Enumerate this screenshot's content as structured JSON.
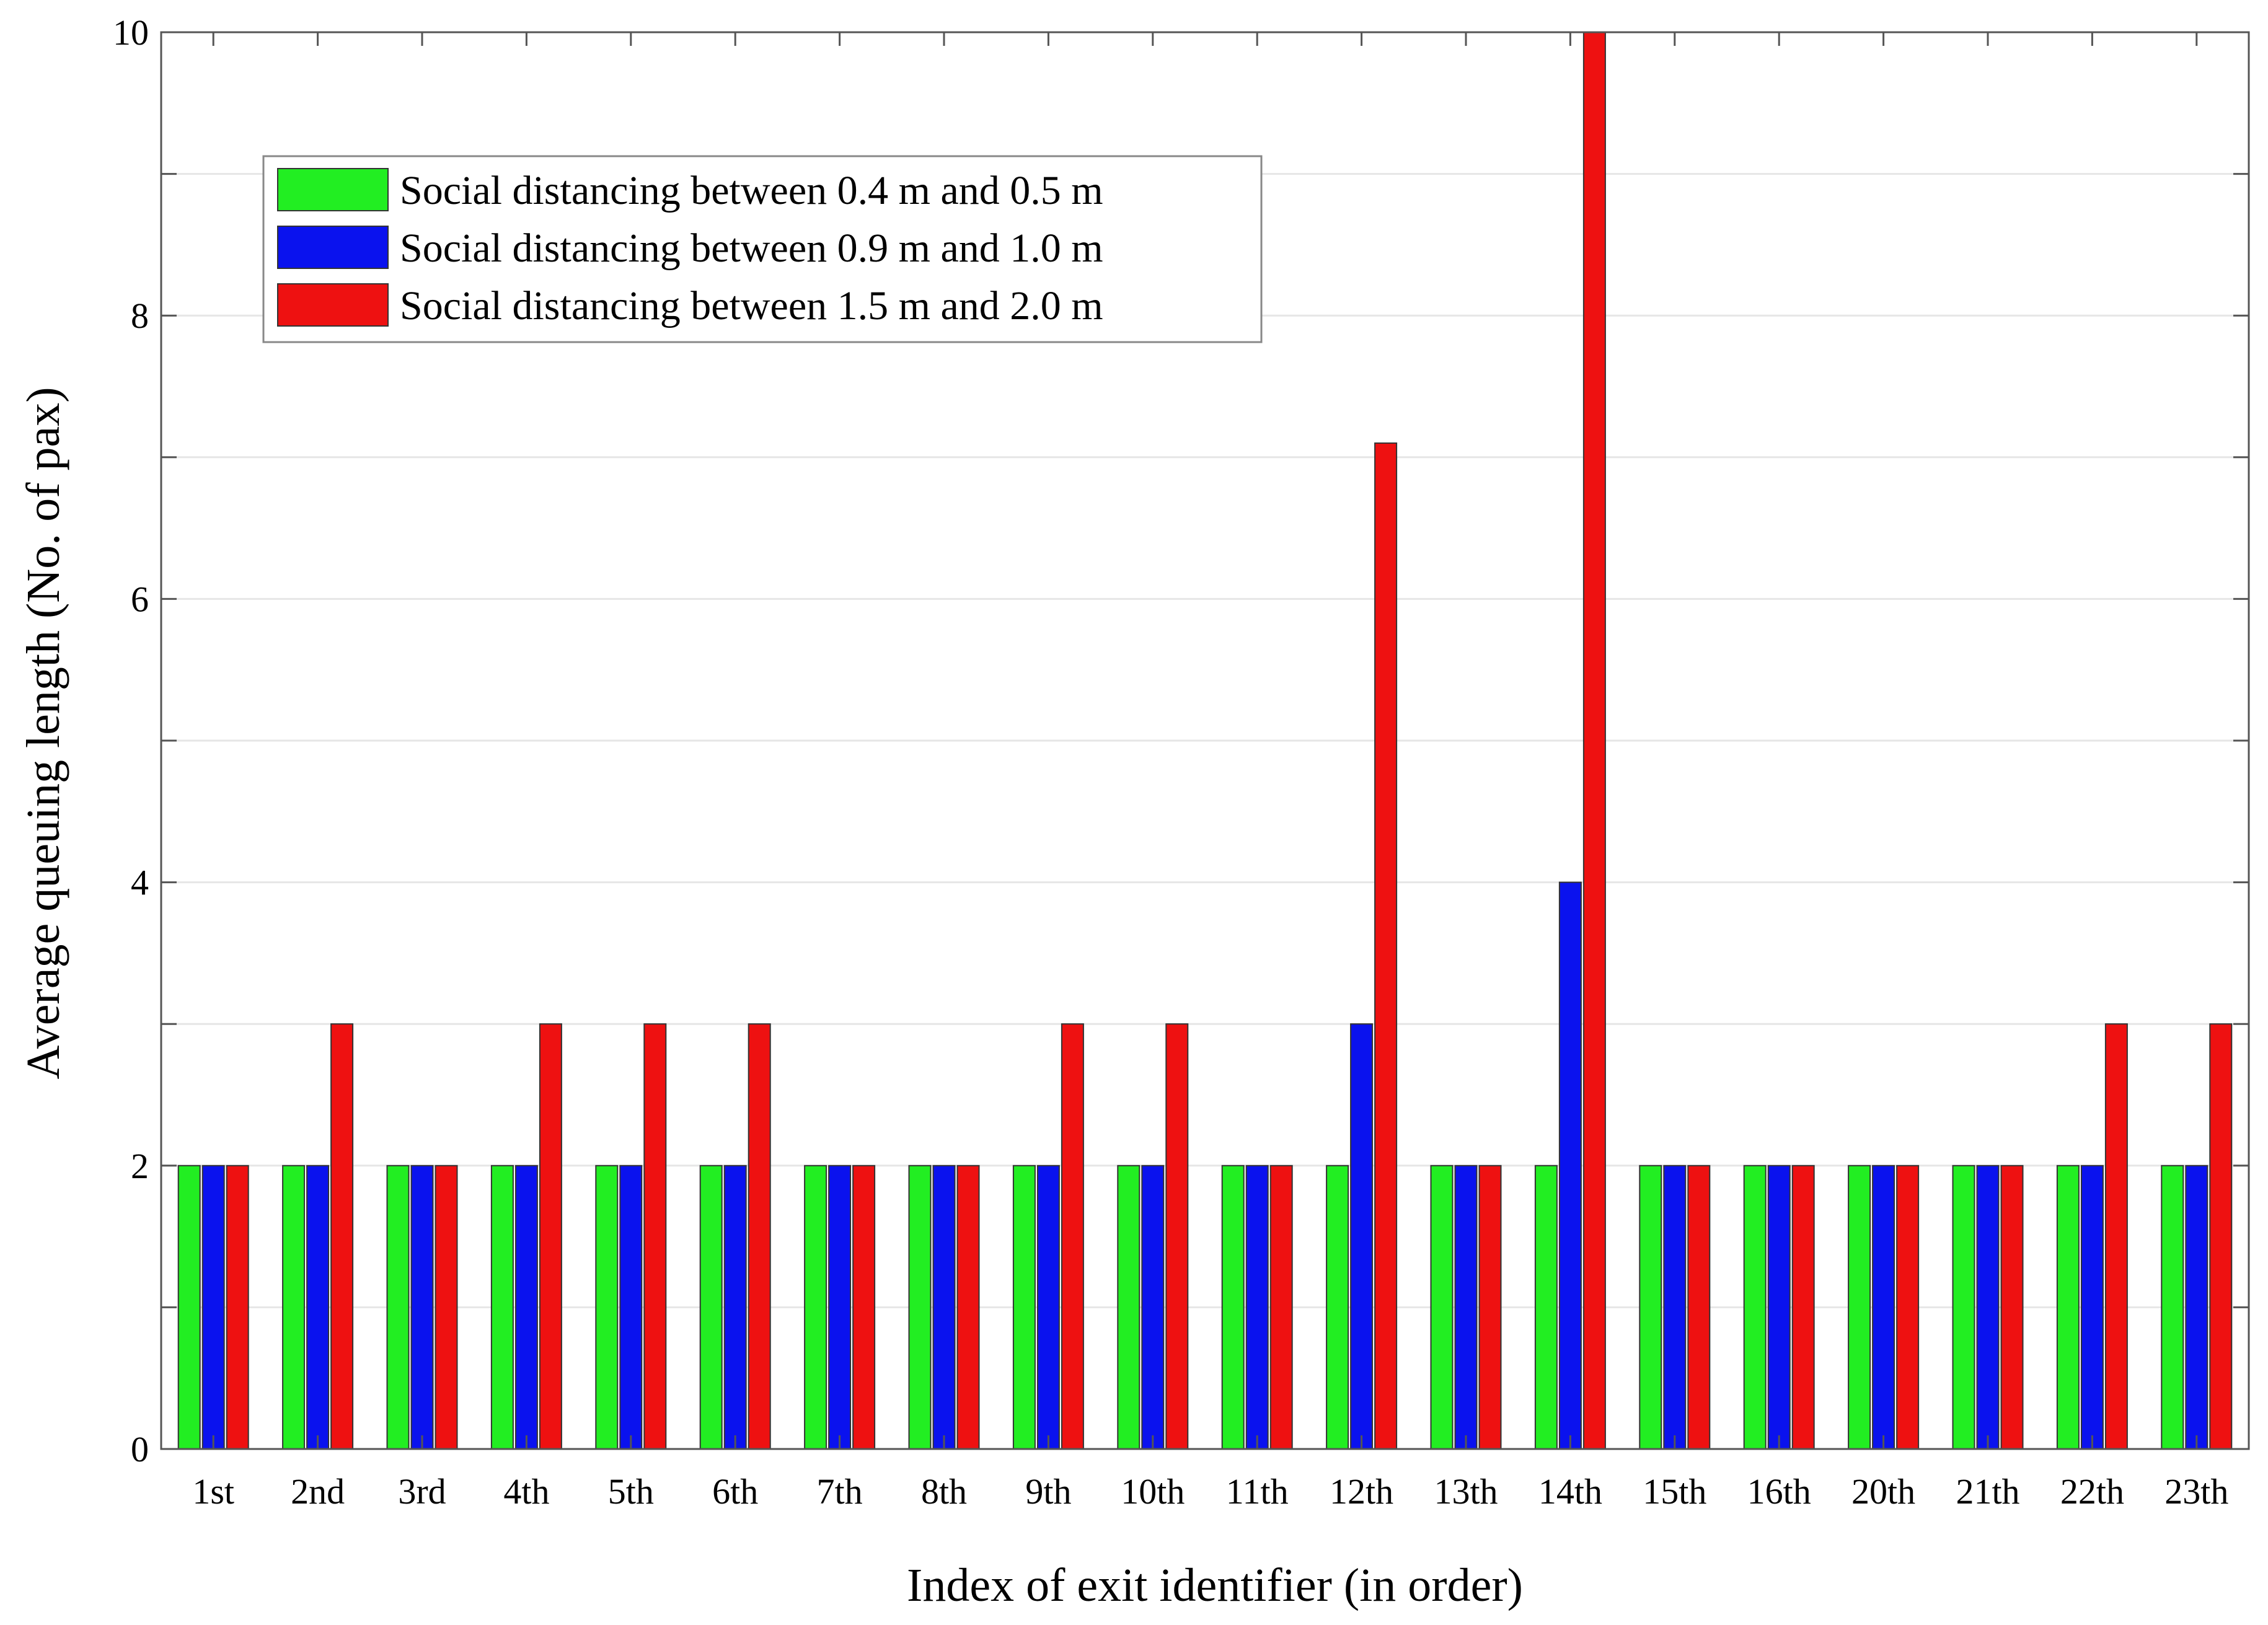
{
  "chart_data": {
    "type": "bar",
    "title": "",
    "xlabel": "Index of exit identifier (in order)",
    "ylabel": "Average queuing length (No. of pax)",
    "ylim": [
      0,
      10
    ],
    "yticks": [
      0,
      2,
      4,
      6,
      8,
      10
    ],
    "legend_position": "top-left",
    "categories": [
      "1st",
      "2nd",
      "3rd",
      "4th",
      "5th",
      "6th",
      "7th",
      "8th",
      "9th",
      "10th",
      "11th",
      "12th",
      "13th",
      "14th",
      "15th",
      "16th",
      "20th",
      "21th",
      "22th",
      "23th"
    ],
    "series": [
      {
        "name": "Social distancing between 0.4 m and 0.5 m",
        "color": "#22ee22",
        "values": [
          2,
          2,
          2,
          2,
          2,
          2,
          2,
          2,
          2,
          2,
          2,
          2,
          2,
          2,
          2,
          2,
          2,
          2,
          2,
          2
        ]
      },
      {
        "name": "Social distancing between 0.9 m and 1.0 m",
        "color": "#0a12ee",
        "values": [
          2,
          2,
          2,
          2,
          2,
          2,
          2,
          2,
          2,
          2,
          2,
          3,
          2,
          4,
          2,
          2,
          2,
          2,
          2,
          2
        ]
      },
      {
        "name": "Social distancing between 1.5 m and 2.0 m",
        "color": "#ee1111",
        "values": [
          2,
          3,
          2,
          3,
          3,
          3,
          2,
          2,
          3,
          3,
          2,
          7.1,
          2,
          10,
          2,
          2,
          2,
          2,
          3,
          3
        ]
      }
    ]
  }
}
